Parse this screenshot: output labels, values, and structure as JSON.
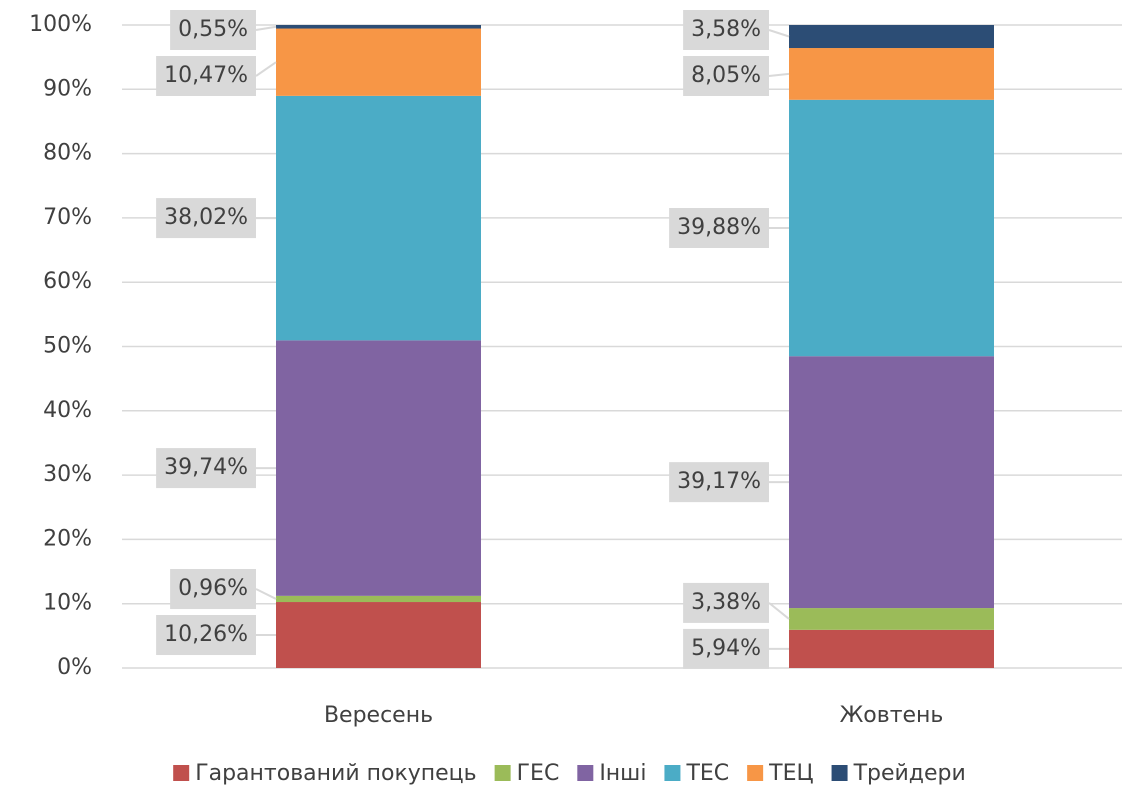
{
  "chart_data": {
    "type": "stacked_bar",
    "categories": [
      "Вересень",
      "Жовтень"
    ],
    "series": [
      {
        "name": "Гарантований покупець",
        "color": "#c0504d",
        "values": [
          10.26,
          5.94
        ],
        "value_labels": [
          "10,26%",
          "5,94%"
        ]
      },
      {
        "name": "ГЕС",
        "color": "#9bbb59",
        "values": [
          0.96,
          3.38
        ],
        "value_labels": [
          "0,96%",
          "3,38%"
        ]
      },
      {
        "name": "Інші",
        "color": "#8064a2",
        "values": [
          39.74,
          39.17
        ],
        "value_labels": [
          "39,74%",
          "39,17%"
        ]
      },
      {
        "name": "ТЕС",
        "color": "#4bacc6",
        "values": [
          38.02,
          39.88
        ],
        "value_labels": [
          "38,02%",
          "39,88%"
        ]
      },
      {
        "name": "ТЕЦ",
        "color": "#f79646",
        "values": [
          10.47,
          8.05
        ],
        "value_labels": [
          "10,47%",
          "8,05%"
        ]
      },
      {
        "name": "Трейдери",
        "color": "#2c4d75",
        "values": [
          0.55,
          3.58
        ],
        "value_labels": [
          "0,55%",
          "3,58%"
        ]
      }
    ],
    "ylim": [
      0,
      100
    ],
    "yticks": [
      {
        "value": 0,
        "label": "0%"
      },
      {
        "value": 10,
        "label": "10%"
      },
      {
        "value": 20,
        "label": "20%"
      },
      {
        "value": 30,
        "label": "30%"
      },
      {
        "value": 40,
        "label": "40%"
      },
      {
        "value": 50,
        "label": "50%"
      },
      {
        "value": 60,
        "label": "60%"
      },
      {
        "value": 70,
        "label": "70%"
      },
      {
        "value": 80,
        "label": "80%"
      },
      {
        "value": 90,
        "label": "90%"
      },
      {
        "value": 100,
        "label": "100%"
      }
    ],
    "grid": true,
    "legend": "bottom"
  }
}
